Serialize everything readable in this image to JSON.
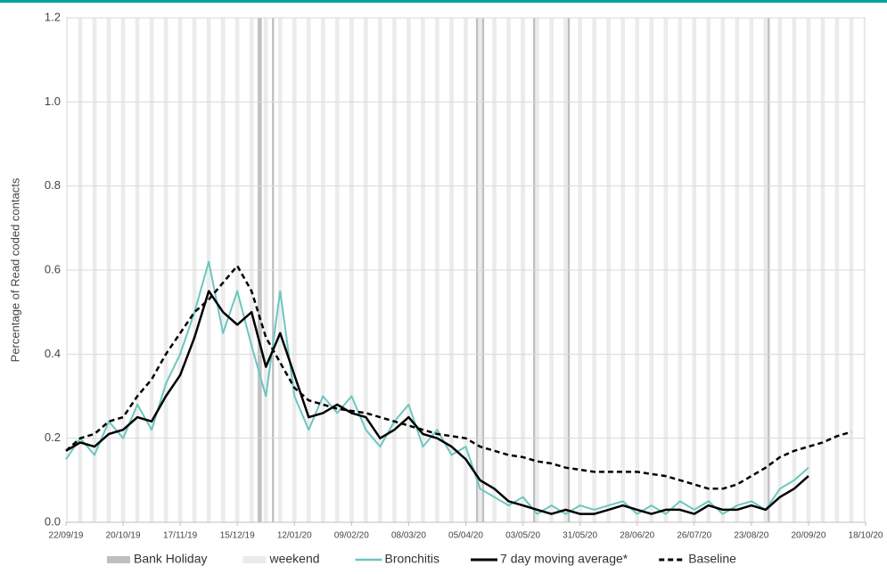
{
  "chart_data": {
    "type": "line",
    "y_label": "Percentage of Read coded contacts",
    "x": [
      "2019-09-22",
      "2019-09-29",
      "2019-10-06",
      "2019-10-13",
      "2019-10-20",
      "2019-10-27",
      "2019-11-03",
      "2019-11-10",
      "2019-11-17",
      "2019-11-24",
      "2019-12-01",
      "2019-12-08",
      "2019-12-15",
      "2019-12-22",
      "2019-12-29",
      "2020-01-05",
      "2020-01-12",
      "2020-01-19",
      "2020-01-26",
      "2020-02-02",
      "2020-02-09",
      "2020-02-16",
      "2020-02-23",
      "2020-03-01",
      "2020-03-08",
      "2020-03-15",
      "2020-03-22",
      "2020-03-29",
      "2020-04-05",
      "2020-04-12",
      "2020-04-19",
      "2020-04-26",
      "2020-05-03",
      "2020-05-10",
      "2020-05-17",
      "2020-05-24",
      "2020-05-31",
      "2020-06-07",
      "2020-06-14",
      "2020-06-21",
      "2020-06-28",
      "2020-07-05",
      "2020-07-12",
      "2020-07-19",
      "2020-07-26",
      "2020-08-02",
      "2020-08-09",
      "2020-08-16",
      "2020-08-23",
      "2020-08-30",
      "2020-09-06",
      "2020-09-13",
      "2020-09-20",
      "2020-09-27",
      "2020-10-04",
      "2020-10-11"
    ],
    "series": [
      {
        "name": "Bronchitis",
        "color": "#6cc6c0",
        "width": 2,
        "dash": false,
        "values": [
          0.15,
          0.2,
          0.16,
          0.24,
          0.2,
          0.28,
          0.22,
          0.33,
          0.4,
          0.5,
          0.62,
          0.45,
          0.55,
          0.42,
          0.3,
          0.55,
          0.3,
          0.22,
          0.3,
          0.26,
          0.3,
          0.22,
          0.18,
          0.24,
          0.28,
          0.18,
          0.22,
          0.16,
          0.18,
          0.08,
          0.06,
          0.04,
          0.06,
          0.02,
          0.04,
          0.02,
          0.04,
          0.03,
          0.04,
          0.05,
          0.02,
          0.04,
          0.02,
          0.05,
          0.03,
          0.05,
          0.02,
          0.04,
          0.05,
          0.03,
          0.08,
          0.1,
          0.13,
          null,
          null,
          null
        ]
      },
      {
        "name": "7 day moving average*",
        "color": "#000000",
        "width": 2.5,
        "dash": false,
        "values": [
          0.17,
          0.19,
          0.18,
          0.21,
          0.22,
          0.25,
          0.24,
          0.3,
          0.35,
          0.44,
          0.55,
          0.5,
          0.47,
          0.5,
          0.37,
          0.45,
          0.35,
          0.25,
          0.26,
          0.28,
          0.26,
          0.25,
          0.2,
          0.22,
          0.25,
          0.21,
          0.2,
          0.18,
          0.15,
          0.1,
          0.08,
          0.05,
          0.04,
          0.03,
          0.02,
          0.03,
          0.02,
          0.02,
          0.03,
          0.04,
          0.03,
          0.02,
          0.03,
          0.03,
          0.02,
          0.04,
          0.03,
          0.03,
          0.04,
          0.03,
          0.06,
          0.08,
          0.11,
          null,
          null,
          null
        ]
      },
      {
        "name": "Baseline",
        "color": "#000000",
        "width": 2.5,
        "dash": true,
        "values": [
          0.17,
          0.2,
          0.21,
          0.24,
          0.25,
          0.3,
          0.34,
          0.4,
          0.45,
          0.5,
          0.53,
          0.57,
          0.61,
          0.55,
          0.44,
          0.38,
          0.32,
          0.29,
          0.28,
          0.27,
          0.265,
          0.26,
          0.25,
          0.24,
          0.23,
          0.22,
          0.21,
          0.205,
          0.2,
          0.18,
          0.17,
          0.16,
          0.155,
          0.145,
          0.14,
          0.13,
          0.125,
          0.12,
          0.12,
          0.12,
          0.12,
          0.115,
          0.11,
          0.1,
          0.09,
          0.08,
          0.08,
          0.09,
          0.11,
          0.13,
          0.155,
          0.17,
          0.18,
          0.19,
          0.205,
          0.215
        ]
      }
    ],
    "bands": [
      {
        "name": "Bank Holiday",
        "color": "#bfbfbf",
        "dates": [
          "2019-12-25",
          "2019-12-26",
          "2020-01-01",
          "2020-04-10",
          "2020-04-13",
          "2020-05-08",
          "2020-05-25",
          "2020-08-31"
        ]
      },
      {
        "name": "weekend",
        "color": "#ebebeb"
      }
    ],
    "xlim": [
      "2019-09-22",
      "2020-10-18"
    ],
    "xticks": [
      {
        "value": "2019-09-22",
        "label": "22/09/19"
      },
      {
        "value": "2019-10-20",
        "label": "20/10/19"
      },
      {
        "value": "2019-11-17",
        "label": "17/11/19"
      },
      {
        "value": "2019-12-15",
        "label": "15/12/19"
      },
      {
        "value": "2020-01-12",
        "label": "12/01/20"
      },
      {
        "value": "2020-02-09",
        "label": "09/02/20"
      },
      {
        "value": "2020-03-08",
        "label": "08/03/20"
      },
      {
        "value": "2020-04-05",
        "label": "05/04/20"
      },
      {
        "value": "2020-05-03",
        "label": "03/05/20"
      },
      {
        "value": "2020-05-31",
        "label": "31/05/20"
      },
      {
        "value": "2020-06-28",
        "label": "28/06/20"
      },
      {
        "value": "2020-07-26",
        "label": "26/07/20"
      },
      {
        "value": "2020-08-23",
        "label": "23/08/20"
      },
      {
        "value": "2020-09-20",
        "label": "20/09/20"
      },
      {
        "value": "2020-10-18",
        "label": "18/10/20"
      }
    ],
    "ylim": [
      0,
      1.2
    ],
    "yticks": [
      {
        "value": 0,
        "label": "0.0"
      },
      0.2,
      0.4,
      0.6,
      0.8,
      {
        "value": 1,
        "label": "1.0"
      },
      1.2
    ],
    "grid": true,
    "header_color": "#00a39e"
  }
}
